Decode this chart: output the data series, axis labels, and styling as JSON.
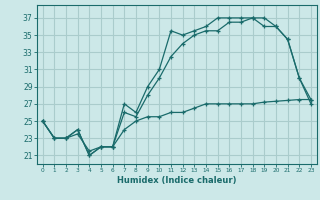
{
  "title": "",
  "xlabel": "Humidex (Indice chaleur)",
  "bg_color": "#cce8e8",
  "grid_color": "#aacccc",
  "line_color": "#1a6b6b",
  "x_ticks": [
    0,
    1,
    2,
    3,
    4,
    5,
    6,
    7,
    8,
    9,
    10,
    11,
    12,
    13,
    14,
    15,
    16,
    17,
    18,
    19,
    20,
    21,
    22,
    23
  ],
  "y_ticks": [
    21,
    23,
    25,
    27,
    29,
    31,
    33,
    35,
    37
  ],
  "ylim": [
    20.0,
    38.5
  ],
  "xlim": [
    -0.5,
    23.5
  ],
  "line1_x": [
    0,
    1,
    2,
    3,
    4,
    5,
    6,
    7,
    8,
    9,
    10,
    11,
    12,
    13,
    14,
    15,
    16,
    17,
    18,
    19,
    20,
    21,
    22,
    23
  ],
  "line1_y": [
    25,
    23,
    23,
    24,
    21,
    22,
    22,
    27,
    26,
    29,
    31,
    35.5,
    35,
    35.5,
    36,
    37,
    37,
    37,
    37,
    37,
    36,
    34.5,
    30,
    27.5
  ],
  "line2_x": [
    0,
    1,
    2,
    3,
    4,
    5,
    6,
    7,
    8,
    9,
    10,
    11,
    12,
    13,
    14,
    15,
    16,
    17,
    18,
    19,
    20,
    21,
    22,
    23
  ],
  "line2_y": [
    25,
    23,
    23,
    24,
    21,
    22,
    22,
    26,
    25.5,
    28,
    30,
    32.5,
    34,
    35,
    35.5,
    35.5,
    36.5,
    36.5,
    37,
    36,
    36,
    34.5,
    30,
    27
  ],
  "line3_x": [
    0,
    1,
    2,
    3,
    4,
    5,
    6,
    7,
    8,
    9,
    10,
    11,
    12,
    13,
    14,
    15,
    16,
    17,
    18,
    19,
    20,
    21,
    22,
    23
  ],
  "line3_y": [
    25,
    23,
    23,
    23.5,
    21.5,
    22,
    22,
    24,
    25,
    25.5,
    25.5,
    26,
    26,
    26.5,
    27,
    27,
    27,
    27,
    27,
    27.2,
    27.3,
    27.4,
    27.5,
    27.5
  ]
}
